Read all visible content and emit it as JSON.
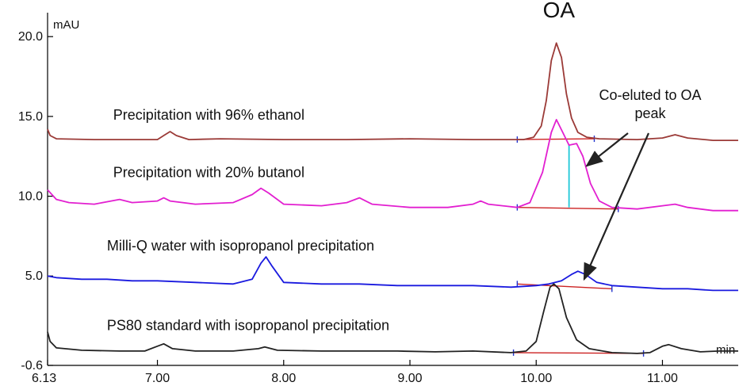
{
  "chart_data": {
    "type": "line",
    "title": "",
    "xlabel": "",
    "ylabel": "",
    "y_unit": "mAU",
    "x_unit": "min",
    "xlim": [
      6.13,
      11.6
    ],
    "ylim": [
      -0.6,
      21.5
    ],
    "xticks": [
      6.13,
      7.0,
      8.0,
      9.0,
      10.0,
      11.0
    ],
    "x_tick_labels": [
      "6.13",
      "7.00",
      "8.00",
      "9.00",
      "10.00",
      "11.00"
    ],
    "yticks": [
      -0.6,
      5.0,
      10.0,
      15.0,
      20.0
    ],
    "y_tick_labels": [
      "-0.6",
      "5.0",
      "10.0",
      "15.0",
      "20.0"
    ],
    "grid": false,
    "legend": "none",
    "peak_label": {
      "text": "OA",
      "x": 10.18,
      "y": 21.2
    },
    "annotation": {
      "lines": [
        "Co-eluted to OA",
        "peak"
      ],
      "arrow_targets": [
        {
          "x": 10.4,
          "y": 11.9
        },
        {
          "x": 10.38,
          "y": 4.8
        }
      ]
    },
    "series": [
      {
        "name": "Precipitation with 96% ethanol",
        "color": "#9b3a37",
        "label_pos": {
          "x": 6.65,
          "y": 14.8
        },
        "points": [
          [
            6.13,
            14.2
          ],
          [
            6.15,
            13.8
          ],
          [
            6.2,
            13.6
          ],
          [
            6.5,
            13.55
          ],
          [
            7.0,
            13.55
          ],
          [
            7.05,
            13.8
          ],
          [
            7.1,
            14.05
          ],
          [
            7.15,
            13.8
          ],
          [
            7.25,
            13.55
          ],
          [
            7.5,
            13.6
          ],
          [
            8.0,
            13.55
          ],
          [
            8.5,
            13.55
          ],
          [
            9.0,
            13.6
          ],
          [
            9.5,
            13.55
          ],
          [
            9.9,
            13.55
          ],
          [
            9.98,
            13.7
          ],
          [
            10.04,
            14.4
          ],
          [
            10.08,
            16.0
          ],
          [
            10.12,
            18.5
          ],
          [
            10.16,
            19.6
          ],
          [
            10.2,
            18.7
          ],
          [
            10.24,
            16.4
          ],
          [
            10.28,
            14.9
          ],
          [
            10.33,
            14.0
          ],
          [
            10.4,
            13.7
          ],
          [
            10.5,
            13.6
          ],
          [
            10.8,
            13.55
          ],
          [
            11.0,
            13.65
          ],
          [
            11.1,
            13.85
          ],
          [
            11.2,
            13.65
          ],
          [
            11.4,
            13.5
          ],
          [
            11.6,
            13.5
          ]
        ]
      },
      {
        "name": "Precipitation with 20% butanol",
        "color": "#e21fd0",
        "label_pos": {
          "x": 6.65,
          "y": 11.2
        },
        "points": [
          [
            6.13,
            10.4
          ],
          [
            6.2,
            9.8
          ],
          [
            6.3,
            9.6
          ],
          [
            6.5,
            9.5
          ],
          [
            6.7,
            9.8
          ],
          [
            6.8,
            9.6
          ],
          [
            7.0,
            9.7
          ],
          [
            7.05,
            9.9
          ],
          [
            7.1,
            9.7
          ],
          [
            7.3,
            9.5
          ],
          [
            7.6,
            9.6
          ],
          [
            7.75,
            10.1
          ],
          [
            7.82,
            10.5
          ],
          [
            7.88,
            10.2
          ],
          [
            8.0,
            9.5
          ],
          [
            8.3,
            9.4
          ],
          [
            8.5,
            9.6
          ],
          [
            8.6,
            9.9
          ],
          [
            8.7,
            9.5
          ],
          [
            9.0,
            9.3
          ],
          [
            9.3,
            9.3
          ],
          [
            9.5,
            9.5
          ],
          [
            9.56,
            9.7
          ],
          [
            9.62,
            9.5
          ],
          [
            9.85,
            9.3
          ],
          [
            9.95,
            9.6
          ],
          [
            10.05,
            11.5
          ],
          [
            10.12,
            14.0
          ],
          [
            10.16,
            14.8
          ],
          [
            10.21,
            14.0
          ],
          [
            10.26,
            13.2
          ],
          [
            10.32,
            13.3
          ],
          [
            10.37,
            12.5
          ],
          [
            10.43,
            10.8
          ],
          [
            10.5,
            9.7
          ],
          [
            10.6,
            9.3
          ],
          [
            10.8,
            9.2
          ],
          [
            11.0,
            9.4
          ],
          [
            11.1,
            9.5
          ],
          [
            11.2,
            9.3
          ],
          [
            11.4,
            9.1
          ],
          [
            11.6,
            9.1
          ]
        ]
      },
      {
        "name": "Milli-Q water with isopropanol precipitation",
        "color": "#1a1adf",
        "label_pos": {
          "x": 6.6,
          "y": 6.6
        },
        "points": [
          [
            6.13,
            5.0
          ],
          [
            6.2,
            4.9
          ],
          [
            6.4,
            4.8
          ],
          [
            6.6,
            4.8
          ],
          [
            6.8,
            4.7
          ],
          [
            7.0,
            4.7
          ],
          [
            7.3,
            4.6
          ],
          [
            7.6,
            4.5
          ],
          [
            7.75,
            4.8
          ],
          [
            7.82,
            5.8
          ],
          [
            7.86,
            6.2
          ],
          [
            7.91,
            5.6
          ],
          [
            8.0,
            4.6
          ],
          [
            8.3,
            4.5
          ],
          [
            8.6,
            4.5
          ],
          [
            8.9,
            4.4
          ],
          [
            9.2,
            4.4
          ],
          [
            9.5,
            4.4
          ],
          [
            9.8,
            4.3
          ],
          [
            10.0,
            4.4
          ],
          [
            10.1,
            4.5
          ],
          [
            10.2,
            4.7
          ],
          [
            10.28,
            5.1
          ],
          [
            10.33,
            5.3
          ],
          [
            10.39,
            5.1
          ],
          [
            10.48,
            4.6
          ],
          [
            10.6,
            4.4
          ],
          [
            10.8,
            4.3
          ],
          [
            11.0,
            4.2
          ],
          [
            11.2,
            4.2
          ],
          [
            11.4,
            4.1
          ],
          [
            11.6,
            4.1
          ]
        ]
      },
      {
        "name": "PS80 standard with isopropanol precipitation",
        "color": "#222222",
        "label_pos": {
          "x": 6.6,
          "y": 1.6
        },
        "points": [
          [
            6.13,
            1.5
          ],
          [
            6.15,
            0.9
          ],
          [
            6.2,
            0.5
          ],
          [
            6.4,
            0.35
          ],
          [
            6.7,
            0.3
          ],
          [
            6.9,
            0.3
          ],
          [
            7.0,
            0.6
          ],
          [
            7.05,
            0.75
          ],
          [
            7.12,
            0.45
          ],
          [
            7.3,
            0.3
          ],
          [
            7.6,
            0.3
          ],
          [
            7.8,
            0.45
          ],
          [
            7.85,
            0.55
          ],
          [
            7.95,
            0.35
          ],
          [
            8.3,
            0.3
          ],
          [
            8.6,
            0.3
          ],
          [
            8.9,
            0.3
          ],
          [
            9.2,
            0.25
          ],
          [
            9.5,
            0.3
          ],
          [
            9.8,
            0.2
          ],
          [
            9.92,
            0.3
          ],
          [
            10.0,
            0.9
          ],
          [
            10.06,
            2.8
          ],
          [
            10.11,
            4.3
          ],
          [
            10.14,
            4.5
          ],
          [
            10.18,
            4.2
          ],
          [
            10.24,
            2.4
          ],
          [
            10.32,
            1.0
          ],
          [
            10.42,
            0.45
          ],
          [
            10.6,
            0.2
          ],
          [
            10.8,
            0.15
          ],
          [
            10.9,
            0.2
          ],
          [
            11.0,
            0.6
          ],
          [
            11.05,
            0.7
          ],
          [
            11.15,
            0.45
          ],
          [
            11.3,
            0.25
          ],
          [
            11.45,
            0.3
          ],
          [
            11.6,
            0.3
          ]
        ]
      }
    ],
    "integration_baselines": [
      {
        "color": "#cc2222",
        "x1": 9.85,
        "y1": 13.55,
        "x2": 10.46,
        "y2": 13.6
      },
      {
        "color": "#cc2222",
        "x1": 9.85,
        "y1": 9.3,
        "x2": 10.65,
        "y2": 9.2
      },
      {
        "color": "#cc2222",
        "x1": 9.85,
        "y1": 4.5,
        "x2": 10.6,
        "y2": 4.2
      },
      {
        "color": "#cc2222",
        "x1": 9.82,
        "y1": 0.2,
        "x2": 10.85,
        "y2": 0.15
      }
    ],
    "split_marker": {
      "color": "#1ec8d8",
      "x": 10.26,
      "y1": 9.3,
      "y2": 13.2
    }
  }
}
